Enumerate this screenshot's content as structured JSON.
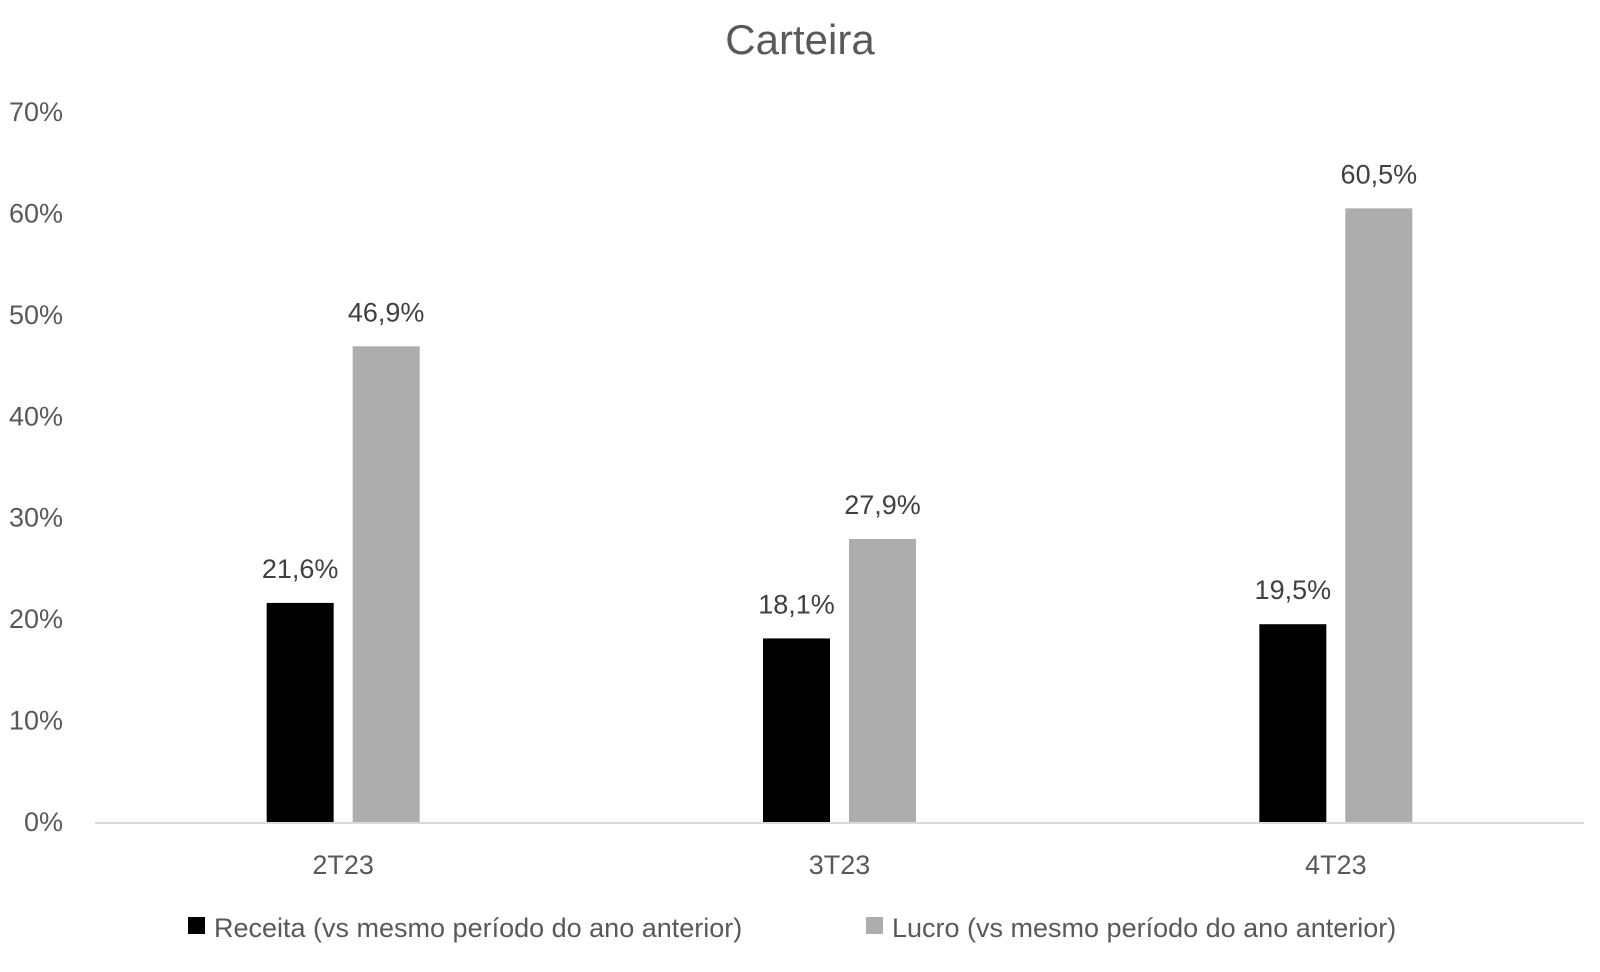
{
  "chart_data": {
    "type": "bar",
    "title": "Carteira",
    "categories": [
      "2T23",
      "3T23",
      "4T23"
    ],
    "series": [
      {
        "name": "Receita (vs mesmo período do ano anterior)",
        "values": [
          21.6,
          18.1,
          19.5
        ],
        "labels": [
          "21,6%",
          "18,1%",
          "19,5%"
        ],
        "color": "#000000"
      },
      {
        "name": "Lucro (vs mesmo período do ano anterior)",
        "values": [
          46.9,
          27.9,
          60.5
        ],
        "labels": [
          "46,9%",
          "27,9%",
          "60,5%"
        ],
        "color": "#ADADAD"
      }
    ],
    "yticks": [
      {
        "value": 0,
        "label": "0%"
      },
      {
        "value": 10,
        "label": "10%"
      },
      {
        "value": 20,
        "label": "20%"
      },
      {
        "value": 30,
        "label": "30%"
      },
      {
        "value": 40,
        "label": "40%"
      },
      {
        "value": 50,
        "label": "50%"
      },
      {
        "value": 60,
        "label": "60%"
      },
      {
        "value": 70,
        "label": "70%"
      }
    ],
    "ylim": [
      0,
      70
    ],
    "xlabel": "",
    "ylabel": "",
    "grid": false,
    "legend": "bottom",
    "axis_color": "#D9D9D9"
  }
}
